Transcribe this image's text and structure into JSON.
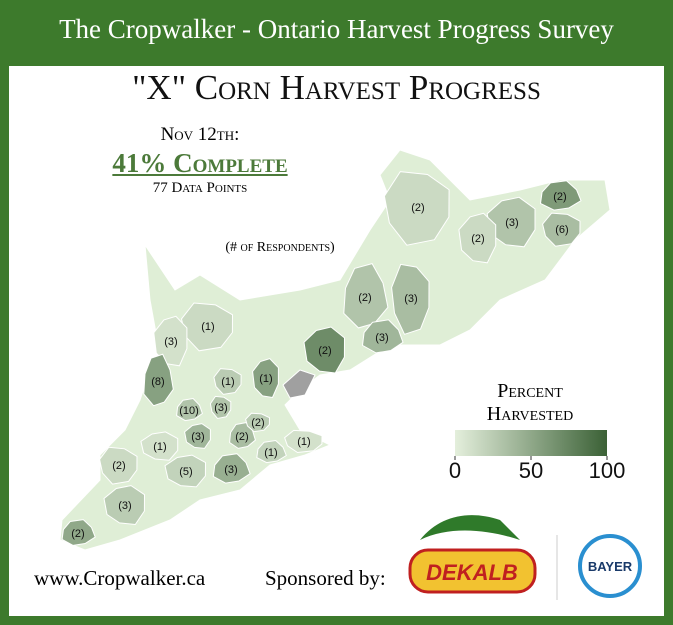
{
  "header": {
    "title": "The Cropwalker - Ontario Harvest Progress Survey"
  },
  "map": {
    "title": "\"X\" Corn Harvest Progress",
    "date": "Nov 12th:",
    "summary": "41% Complete",
    "data_points": "77 Data Points",
    "respondents_note": "(# of Respondents)",
    "regions": [
      {
        "label": "(2)",
        "value": 15
      },
      {
        "label": "(3)",
        "value": 30
      },
      {
        "label": "(2)",
        "value": 60
      },
      {
        "label": "(6)",
        "value": 35
      },
      {
        "label": "(2)",
        "value": 15
      },
      {
        "label": "(2)",
        "value": 30
      },
      {
        "label": "(3)",
        "value": 35
      },
      {
        "label": "(2)",
        "value": 70
      },
      {
        "label": "(3)",
        "value": 40
      },
      {
        "label": "(1)",
        "value": 15
      },
      {
        "label": "(3)",
        "value": 10
      },
      {
        "label": "(8)",
        "value": 55
      },
      {
        "label": "(1)",
        "value": 25
      },
      {
        "label": "(1)",
        "value": 55
      },
      {
        "label": "(10)",
        "value": 30
      },
      {
        "label": "(3)",
        "value": 30
      },
      {
        "label": "(3)",
        "value": 40
      },
      {
        "label": "(2)",
        "value": 35
      },
      {
        "label": "(2)",
        "value": 25
      },
      {
        "label": "(1)",
        "value": 10
      },
      {
        "label": "(1)",
        "value": 20
      },
      {
        "label": "(1)",
        "value": 10
      },
      {
        "label": "(5)",
        "value": 20
      },
      {
        "label": "(3)",
        "value": 45
      },
      {
        "label": "(2)",
        "value": 15
      },
      {
        "label": "(3)",
        "value": 25
      },
      {
        "label": "(2)",
        "value": 50
      }
    ],
    "legend": {
      "title": "Percent Harvested",
      "range": [
        0,
        100
      ],
      "ticks": [
        0,
        50,
        100
      ]
    }
  },
  "footer": {
    "website": "www.Cropwalker.ca",
    "sponsor": "Sponsored by:",
    "logos": [
      "DEKALB",
      "BAYER"
    ]
  }
}
